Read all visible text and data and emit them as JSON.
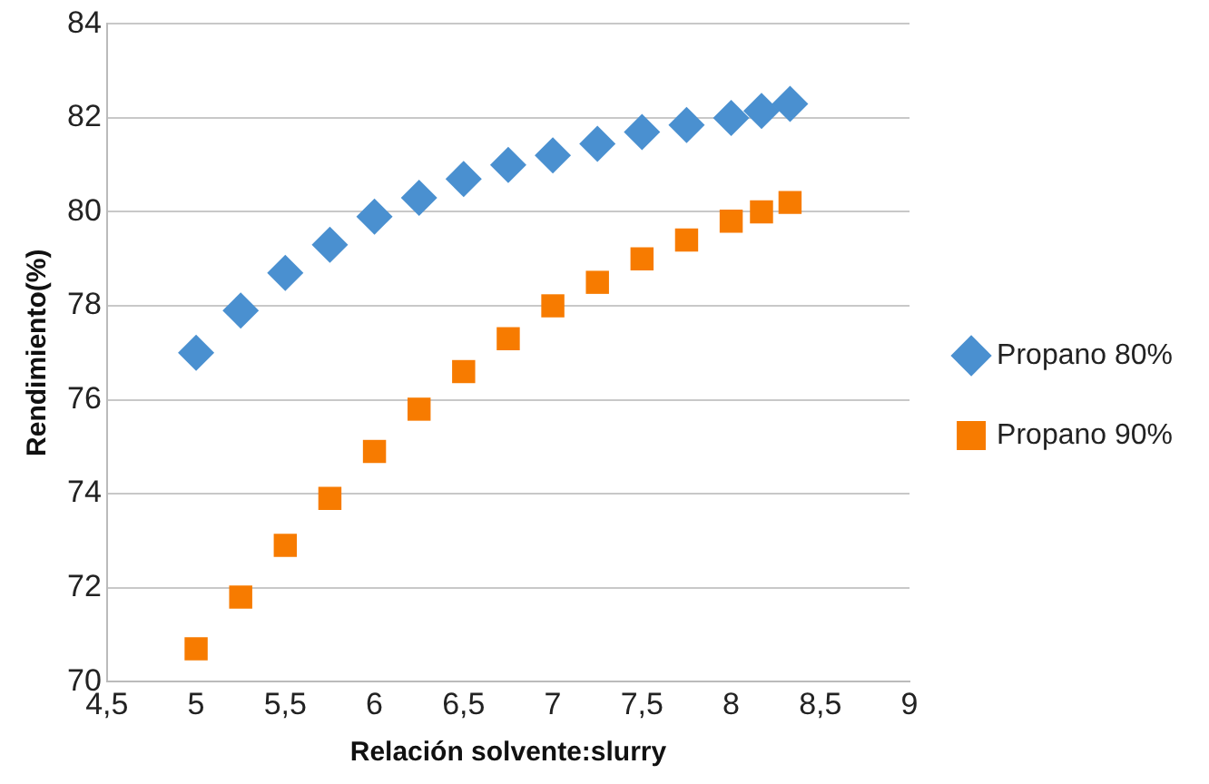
{
  "chart_data": {
    "type": "scatter",
    "xlabel": "Relación solvente:slurry",
    "ylabel": "Rendimiento(%)",
    "xlim": [
      4.5,
      9
    ],
    "xticks": [
      {
        "value": 4.5,
        "label": "4,5"
      },
      5,
      {
        "value": 5.5,
        "label": "5,5"
      },
      6,
      {
        "value": 6.5,
        "label": "6,5"
      },
      7,
      {
        "value": 7.5,
        "label": "7,5"
      },
      8,
      {
        "value": 8.5,
        "label": "8,5"
      },
      9
    ],
    "ylim": [
      70,
      84
    ],
    "yticks": [
      70,
      72,
      74,
      76,
      78,
      80,
      82,
      84
    ],
    "grid": "y",
    "legend": "right",
    "x": [
      5,
      5.25,
      5.5,
      5.75,
      6,
      6.25,
      6.5,
      6.75,
      7,
      7.25,
      7.5,
      7.75,
      8,
      8.17,
      8.33
    ],
    "series": [
      {
        "name": "Propano 80%",
        "color": "#4a90d0",
        "marker": "diamond",
        "values": [
          77.0,
          77.9,
          78.7,
          79.3,
          79.9,
          80.3,
          80.7,
          81.0,
          81.2,
          81.45,
          81.7,
          81.85,
          82.0,
          82.15,
          82.3
        ]
      },
      {
        "name": "Propano 90%",
        "color": "#f77b00",
        "marker": "square",
        "values": [
          70.7,
          71.8,
          72.9,
          73.9,
          74.9,
          75.8,
          76.6,
          77.3,
          78.0,
          78.5,
          79.0,
          79.4,
          79.8,
          80.0,
          80.2
        ]
      }
    ]
  }
}
